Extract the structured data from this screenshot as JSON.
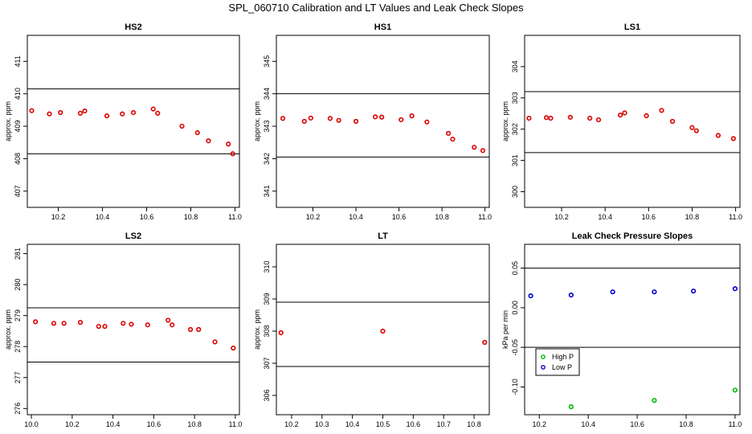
{
  "title": "SPL_060710  Calibration and LT Values and Leak Check Slopes",
  "chart_data": [
    {
      "type": "scatter",
      "title": "HS2",
      "ylabel": "approx. ppm",
      "xlim": [
        10.06,
        11.02
      ],
      "ylim": [
        406.5,
        411.8
      ],
      "xticks": [
        10.2,
        10.4,
        10.6,
        10.8,
        11.0
      ],
      "xtick_labels": [
        "10.2",
        "10.4",
        "10.6",
        "10.8",
        "11.0"
      ],
      "yticks": [
        407,
        408,
        409,
        410,
        411
      ],
      "ytick_labels": [
        "407",
        "408",
        "409",
        "410",
        "411"
      ],
      "hlines": [
        410.15,
        408.15
      ],
      "series": [
        {
          "color": "#dd0000",
          "x": [
            10.08,
            10.16,
            10.21,
            10.3,
            10.32,
            10.42,
            10.49,
            10.54,
            10.63,
            10.65,
            10.76,
            10.83,
            10.88,
            10.97,
            10.99
          ],
          "y": [
            409.48,
            409.38,
            409.42,
            409.4,
            409.47,
            409.32,
            409.38,
            409.42,
            409.53,
            409.4,
            409.0,
            408.8,
            408.55,
            408.45,
            408.15
          ]
        }
      ]
    },
    {
      "type": "scatter",
      "title": "HS1",
      "ylabel": "approx. ppm",
      "xlim": [
        10.03,
        11.02
      ],
      "ylim": [
        340.5,
        345.8
      ],
      "xticks": [
        10.2,
        10.4,
        10.6,
        10.8,
        11.0
      ],
      "xtick_labels": [
        "10.2",
        "10.4",
        "10.6",
        "10.8",
        "11.0"
      ],
      "yticks": [
        341,
        342,
        343,
        344,
        345
      ],
      "ytick_labels": [
        "341",
        "342",
        "343",
        "344",
        "345"
      ],
      "hlines": [
        344.0,
        342.05
      ],
      "series": [
        {
          "color": "#dd0000",
          "x": [
            10.06,
            10.16,
            10.19,
            10.28,
            10.32,
            10.4,
            10.49,
            10.52,
            10.61,
            10.66,
            10.73,
            10.83,
            10.85,
            10.95,
            10.99
          ],
          "y": [
            343.24,
            343.15,
            343.25,
            343.24,
            343.18,
            343.15,
            343.29,
            343.28,
            343.2,
            343.32,
            343.13,
            342.78,
            342.6,
            342.35,
            342.25
          ]
        }
      ]
    },
    {
      "type": "scatter",
      "title": "LS1",
      "ylabel": "approx. ppm",
      "xlim": [
        10.03,
        11.02
      ],
      "ylim": [
        299.5,
        305.0
      ],
      "xticks": [
        10.2,
        10.4,
        10.6,
        10.8,
        11.0
      ],
      "xtick_labels": [
        "10.2",
        "10.4",
        "10.6",
        "10.8",
        "11.0"
      ],
      "yticks": [
        300,
        301,
        302,
        303,
        304
      ],
      "ytick_labels": [
        "300",
        "301",
        "302",
        "303",
        "304"
      ],
      "hlines": [
        303.2,
        301.25
      ],
      "series": [
        {
          "color": "#dd0000",
          "x": [
            10.05,
            10.13,
            10.15,
            10.24,
            10.33,
            10.37,
            10.47,
            10.49,
            10.59,
            10.66,
            10.71,
            10.8,
            10.82,
            10.92,
            10.99
          ],
          "y": [
            302.35,
            302.37,
            302.35,
            302.38,
            302.35,
            302.3,
            302.45,
            302.52,
            302.43,
            302.6,
            302.25,
            302.05,
            301.95,
            301.8,
            301.7
          ]
        }
      ]
    },
    {
      "type": "scatter",
      "title": "LS2",
      "ylabel": "approx. ppm",
      "xlim": [
        9.98,
        11.02
      ],
      "ylim": [
        275.8,
        281.3
      ],
      "xticks": [
        10.0,
        10.2,
        10.4,
        10.6,
        10.8,
        11.0
      ],
      "xtick_labels": [
        "10.0",
        "10.2",
        "10.4",
        "10.6",
        "10.8",
        "11.0"
      ],
      "yticks": [
        276,
        277,
        278,
        279,
        280,
        281
      ],
      "ytick_labels": [
        "276",
        "277",
        "278",
        "279",
        "280",
        "281"
      ],
      "hlines": [
        279.25,
        277.5
      ],
      "series": [
        {
          "color": "#dd0000",
          "x": [
            10.02,
            10.11,
            10.16,
            10.24,
            10.33,
            10.36,
            10.45,
            10.49,
            10.57,
            10.67,
            10.69,
            10.78,
            10.82,
            10.9,
            10.99
          ],
          "y": [
            278.8,
            278.75,
            278.75,
            278.78,
            278.65,
            278.65,
            278.75,
            278.72,
            278.7,
            278.85,
            278.7,
            278.55,
            278.55,
            278.15,
            277.95
          ]
        }
      ]
    },
    {
      "type": "scatter",
      "title": "LT",
      "ylabel": "approx. ppm",
      "xlim": [
        10.15,
        10.85
      ],
      "ylim": [
        305.4,
        310.7
      ],
      "xticks": [
        10.2,
        10.3,
        10.4,
        10.5,
        10.6,
        10.7,
        10.8
      ],
      "xtick_labels": [
        "10.2",
        "10.3",
        "10.4",
        "10.5",
        "10.6",
        "10.7",
        "10.8"
      ],
      "yticks": [
        306,
        307,
        308,
        309,
        310
      ],
      "ytick_labels": [
        "306",
        "307",
        "308",
        "309",
        "310"
      ],
      "hlines": [
        308.9,
        306.9
      ],
      "series": [
        {
          "color": "#dd0000",
          "x": [
            10.165,
            10.5,
            10.835
          ],
          "y": [
            307.95,
            308.0,
            307.65
          ]
        }
      ]
    },
    {
      "type": "scatter",
      "title": "Leak Check Pressure Slopes",
      "ylabel": "kPa per min",
      "xlim": [
        10.14,
        11.02
      ],
      "ylim": [
        -0.135,
        0.08
      ],
      "xticks": [
        10.2,
        10.4,
        10.6,
        10.8,
        11.0
      ],
      "xtick_labels": [
        "10.2",
        "10.4",
        "10.6",
        "10.8",
        "11.0"
      ],
      "yticks": [
        -0.1,
        -0.05,
        0.0,
        0.05
      ],
      "ytick_labels": [
        "-0.10",
        "-0.05",
        "0.00",
        "0.05"
      ],
      "hlines": [
        0.05,
        -0.05
      ],
      "legend": {
        "placement": "bottom-left",
        "entries": [
          {
            "label": "High P",
            "color": "#00bb00"
          },
          {
            "label": "Low P",
            "color": "#0000cc"
          }
        ]
      },
      "series": [
        {
          "name": "High P",
          "color": "#00bb00",
          "x": [
            10.33,
            10.67,
            11.0
          ],
          "y": [
            -0.125,
            -0.117,
            -0.104
          ]
        },
        {
          "name": "Low P",
          "color": "#0000cc",
          "x": [
            10.165,
            10.33,
            10.5,
            10.67,
            10.83,
            11.0
          ],
          "y": [
            0.015,
            0.016,
            0.02,
            0.02,
            0.021,
            0.024
          ]
        }
      ]
    }
  ]
}
